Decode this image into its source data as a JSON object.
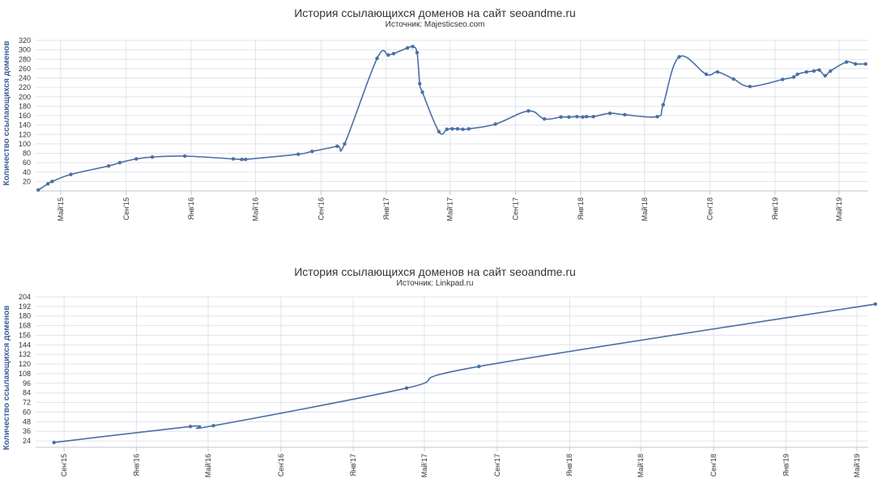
{
  "chart_data": [
    {
      "type": "line",
      "title": "История ссылающихся доменов на сайт seoandme.ru",
      "subtitle": "Источник: Majesticseo.com",
      "ylabel": "Количество ссылающихся доменов",
      "ylim": [
        0,
        320
      ],
      "yticks": [
        20,
        40,
        60,
        80,
        100,
        120,
        140,
        160,
        180,
        200,
        220,
        240,
        260,
        280,
        300,
        320
      ],
      "xlim": [
        "2015-03-15",
        "2019-06-25"
      ],
      "xticks": [
        {
          "date": "2015-05-01",
          "label": "Май'15"
        },
        {
          "date": "2015-09-01",
          "label": "Сен'15"
        },
        {
          "date": "2016-01-01",
          "label": "Янв'16"
        },
        {
          "date": "2016-05-01",
          "label": "Май'16"
        },
        {
          "date": "2016-09-01",
          "label": "Сен'16"
        },
        {
          "date": "2017-01-01",
          "label": "Янв'17"
        },
        {
          "date": "2017-05-01",
          "label": "Май'17"
        },
        {
          "date": "2017-09-01",
          "label": "Сен'17"
        },
        {
          "date": "2018-01-01",
          "label": "Янв'18"
        },
        {
          "date": "2018-05-01",
          "label": "Май'18"
        },
        {
          "date": "2018-09-01",
          "label": "Сен'18"
        },
        {
          "date": "2019-01-01",
          "label": "Янв'19"
        },
        {
          "date": "2019-05-01",
          "label": "Май'19"
        }
      ],
      "grid": true,
      "legend": "none",
      "series": [
        {
          "color": "#4a6fa5",
          "points": [
            [
              "2015-03-20",
              2
            ],
            [
              "2015-04-07",
              15
            ],
            [
              "2015-04-15",
              20
            ],
            [
              "2015-05-20",
              35
            ],
            [
              "2015-07-30",
              53
            ],
            [
              "2015-08-20",
              60
            ],
            [
              "2015-09-20",
              68
            ],
            [
              "2015-10-20",
              72
            ],
            [
              "2015-12-20",
              74
            ],
            [
              "2016-03-20",
              68
            ],
            [
              "2016-04-05",
              67
            ],
            [
              "2016-04-12",
              67
            ],
            [
              "2016-07-20",
              78
            ],
            [
              "2016-08-15",
              84
            ],
            [
              "2016-10-01",
              95
            ],
            [
              "2016-10-15",
              100
            ],
            [
              "2016-12-15",
              282
            ],
            [
              "2017-01-05",
              289
            ],
            [
              "2017-01-15",
              292
            ],
            [
              "2017-02-10",
              304
            ],
            [
              "2017-02-20",
              307
            ],
            [
              "2017-02-28",
              294
            ],
            [
              "2017-03-05",
              228
            ],
            [
              "2017-03-10",
              210
            ],
            [
              "2017-04-10",
              126
            ],
            [
              "2017-04-25",
              131
            ],
            [
              "2017-05-05",
              132
            ],
            [
              "2017-05-15",
              132
            ],
            [
              "2017-05-25",
              131
            ],
            [
              "2017-06-05",
              132
            ],
            [
              "2017-07-25",
              142
            ],
            [
              "2017-09-25",
              170
            ],
            [
              "2017-10-25",
              153
            ],
            [
              "2017-11-25",
              157
            ],
            [
              "2017-12-10",
              157
            ],
            [
              "2017-12-25",
              158
            ],
            [
              "2018-01-05",
              157
            ],
            [
              "2018-01-12",
              158
            ],
            [
              "2018-01-25",
              158
            ],
            [
              "2018-02-25",
              165
            ],
            [
              "2018-03-25",
              162
            ],
            [
              "2018-05-25",
              158
            ],
            [
              "2018-06-05",
              183
            ],
            [
              "2018-07-05",
              285
            ],
            [
              "2018-08-25",
              248
            ],
            [
              "2018-09-15",
              253
            ],
            [
              "2018-10-15",
              238
            ],
            [
              "2018-11-15",
              222
            ],
            [
              "2019-01-15",
              237
            ],
            [
              "2019-02-05",
              242
            ],
            [
              "2019-02-12",
              248
            ],
            [
              "2019-03-01",
              253
            ],
            [
              "2019-03-15",
              255
            ],
            [
              "2019-03-25",
              257
            ],
            [
              "2019-04-05",
              245
            ],
            [
              "2019-04-15",
              255
            ],
            [
              "2019-05-15",
              274
            ],
            [
              "2019-06-01",
              270
            ],
            [
              "2019-06-20",
              270
            ]
          ]
        }
      ]
    },
    {
      "type": "line",
      "title": "История ссылающихся доменов на сайт seoandme.ru",
      "subtitle": "Источник: Linkpad.ru",
      "ylabel": "Количество ссылающихся доменов",
      "ylim": [
        16,
        204
      ],
      "yticks": [
        24,
        36,
        48,
        60,
        72,
        84,
        96,
        108,
        120,
        132,
        144,
        156,
        168,
        180,
        192,
        204
      ],
      "xlim": [
        "2015-07-15",
        "2019-05-20"
      ],
      "xticks": [
        {
          "date": "2015-09-01",
          "label": "Сен'15"
        },
        {
          "date": "2016-01-01",
          "label": "Янв'16"
        },
        {
          "date": "2016-05-01",
          "label": "Май'16"
        },
        {
          "date": "2016-09-01",
          "label": "Сен'16"
        },
        {
          "date": "2017-01-01",
          "label": "Янв'17"
        },
        {
          "date": "2017-05-01",
          "label": "Май'17"
        },
        {
          "date": "2017-09-01",
          "label": "Сен'17"
        },
        {
          "date": "2018-01-01",
          "label": "Янв'18"
        },
        {
          "date": "2018-05-01",
          "label": "Май'18"
        },
        {
          "date": "2018-09-01",
          "label": "Сен'18"
        },
        {
          "date": "2019-01-01",
          "label": "Янв'19"
        },
        {
          "date": "2019-05-01",
          "label": "Май'19"
        }
      ],
      "grid": true,
      "legend": "none",
      "series": [
        {
          "color": "#4a6fa5",
          "points": [
            [
              "2015-08-15",
              22
            ],
            [
              "2016-04-01",
              42
            ],
            [
              "2016-05-10",
              43
            ],
            [
              "2017-04-01",
              90
            ],
            [
              "2017-08-01",
              117
            ],
            [
              "2019-06-01",
              195
            ]
          ]
        }
      ]
    }
  ]
}
